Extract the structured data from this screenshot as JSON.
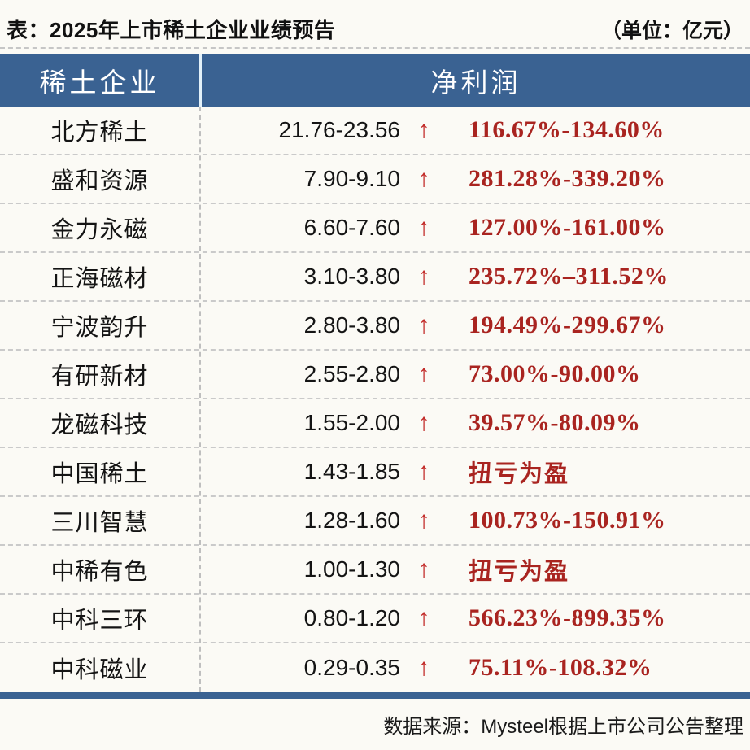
{
  "chart_data": {
    "type": "table",
    "title": "表：2025年上市稀土企业业绩预告",
    "unit_note": "（单位：亿元）",
    "columns": [
      "稀土企业",
      "净利润"
    ],
    "rows": [
      {
        "company": "北方稀土",
        "net_profit_range": "21.76-23.56",
        "direction": "↑",
        "yoy_change": "116.67%-134.60%"
      },
      {
        "company": "盛和资源",
        "net_profit_range": "7.90-9.10",
        "direction": "↑",
        "yoy_change": "281.28%-339.20%"
      },
      {
        "company": "金力永磁",
        "net_profit_range": "6.60-7.60",
        "direction": "↑",
        "yoy_change": "127.00%-161.00%"
      },
      {
        "company": "正海磁材",
        "net_profit_range": "3.10-3.80",
        "direction": "↑",
        "yoy_change": "235.72%–311.52%"
      },
      {
        "company": "宁波韵升",
        "net_profit_range": "2.80-3.80",
        "direction": "↑",
        "yoy_change": "194.49%-299.67%"
      },
      {
        "company": "有研新材",
        "net_profit_range": "2.55-2.80",
        "direction": "↑",
        "yoy_change": "73.00%-90.00%"
      },
      {
        "company": "龙磁科技",
        "net_profit_range": "1.55-2.00",
        "direction": "↑",
        "yoy_change": "39.57%-80.09%"
      },
      {
        "company": "中国稀土",
        "net_profit_range": "1.43-1.85",
        "direction": "↑",
        "yoy_change": "扭亏为盈"
      },
      {
        "company": "三川智慧",
        "net_profit_range": "1.28-1.60",
        "direction": "↑",
        "yoy_change": "100.73%-150.91%"
      },
      {
        "company": "中稀有色",
        "net_profit_range": "1.00-1.30",
        "direction": "↑",
        "yoy_change": "扭亏为盈"
      },
      {
        "company": "中科三环",
        "net_profit_range": "0.80-1.20",
        "direction": "↑",
        "yoy_change": "566.23%-899.35%"
      },
      {
        "company": "中科磁业",
        "net_profit_range": "0.29-0.35",
        "direction": "↑",
        "yoy_change": "75.11%-108.32%"
      }
    ],
    "source_note": "数据来源：Mysteel根据上市公司公告整理"
  },
  "header": {
    "col1": "稀土企业",
    "col2": "净利润"
  },
  "colors": {
    "header_blue": "#3A6292",
    "percent_red": "#A92420",
    "arrow_red": "#C22A28",
    "background": "#FBFAF5"
  }
}
